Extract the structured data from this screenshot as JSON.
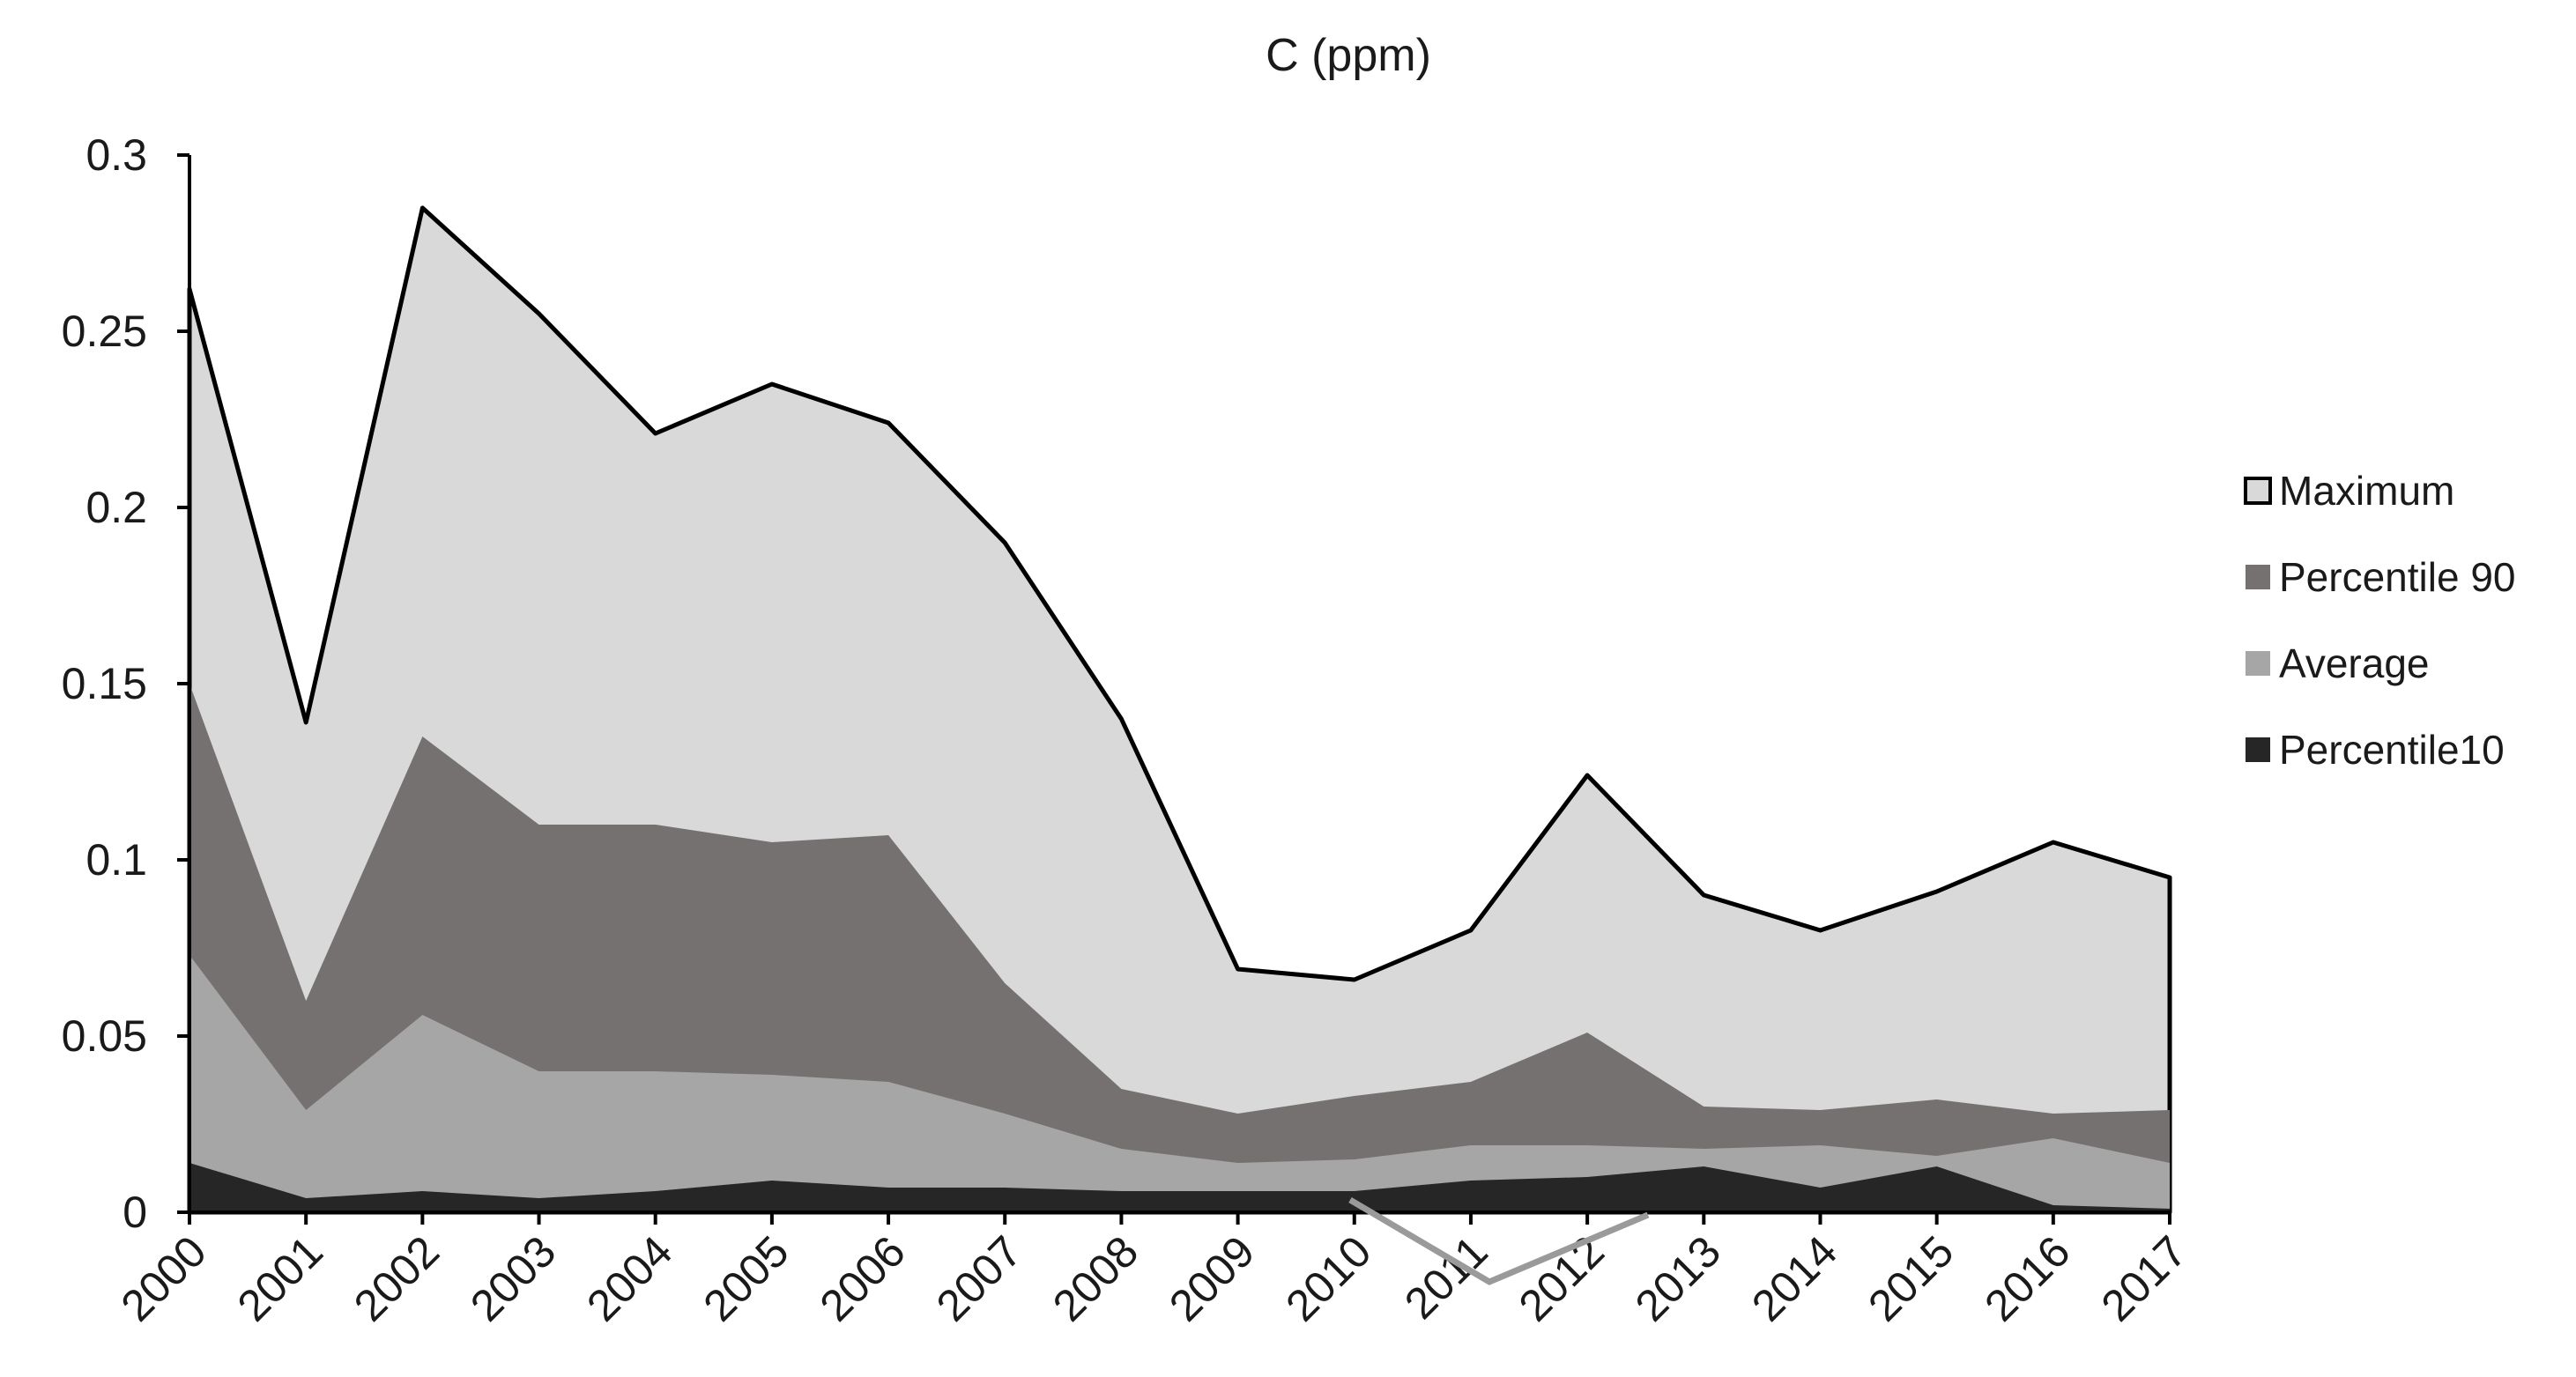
{
  "chart_data": {
    "type": "area",
    "title": "C (ppm)",
    "xlabel": "",
    "ylabel": "",
    "categories": [
      "2000",
      "2001",
      "2002",
      "2003",
      "2004",
      "2005",
      "2006",
      "2007",
      "2008",
      "2009",
      "2010",
      "2011",
      "2012",
      "2013",
      "2014",
      "2015",
      "2016",
      "2017"
    ],
    "ylim": [
      0,
      0.3
    ],
    "yticks": [
      0,
      0.05,
      0.1,
      0.15,
      0.2,
      0.25,
      0.3
    ],
    "ytick_labels": [
      "0",
      "0.05",
      "0.1",
      "0.15",
      "0.2",
      "0.25",
      "0.3"
    ],
    "grid": false,
    "legend_position": "right",
    "series": [
      {
        "name": "Maximum",
        "color": "#d9d9d9",
        "values": [
          0.262,
          0.139,
          0.285,
          0.255,
          0.221,
          0.235,
          0.224,
          0.19,
          0.14,
          0.069,
          0.066,
          0.08,
          0.124,
          0.09,
          0.08,
          0.091,
          0.105,
          0.095
        ]
      },
      {
        "name": "Percentile 90",
        "color": "#757171",
        "values": [
          0.15,
          0.06,
          0.135,
          0.11,
          0.11,
          0.105,
          0.107,
          0.065,
          0.035,
          0.028,
          0.033,
          0.037,
          0.051,
          0.03,
          0.029,
          0.032,
          0.028,
          0.029
        ]
      },
      {
        "name": "Average",
        "color": "#a6a6a6",
        "values": [
          0.073,
          0.029,
          0.056,
          0.04,
          0.04,
          0.039,
          0.037,
          0.028,
          0.018,
          0.014,
          0.015,
          0.019,
          0.019,
          0.018,
          0.019,
          0.016,
          0.021,
          0.014
        ]
      },
      {
        "name": "Percentile10",
        "color": "#262626",
        "values": [
          0.014,
          0.004,
          0.006,
          0.004,
          0.006,
          0.009,
          0.007,
          0.007,
          0.006,
          0.006,
          0.006,
          0.009,
          0.01,
          0.013,
          0.007,
          0.013,
          0.002,
          0.001
        ]
      }
    ]
  }
}
